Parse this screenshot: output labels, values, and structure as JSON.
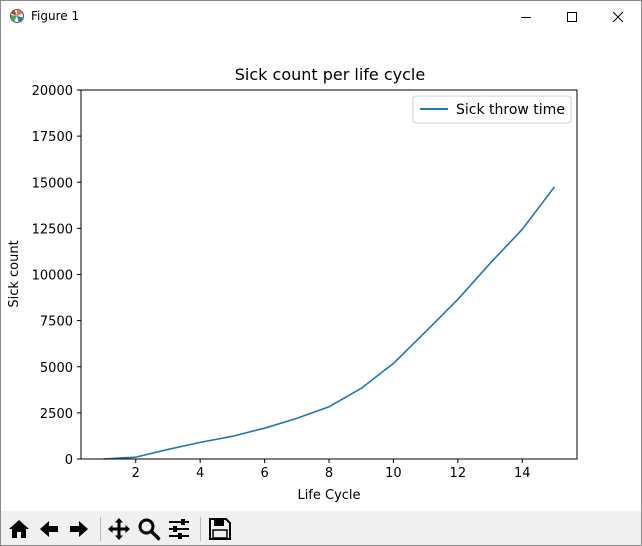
{
  "window": {
    "title": "Figure 1",
    "icons": {
      "app": "matplotlib-icon",
      "minimize": "minimize-icon",
      "maximize": "maximize-icon",
      "close": "close-icon"
    }
  },
  "toolbar": {
    "buttons": [
      "home-icon",
      "back-arrow-icon",
      "forward-arrow-icon",
      "pan-icon",
      "zoom-icon",
      "configure-subplots-icon",
      "save-icon"
    ]
  },
  "chart_data": {
    "type": "line",
    "title": "Sick count per life cycle",
    "xlabel": "Life Cycle",
    "ylabel": "Sick count",
    "xlim": [
      0.3,
      15.7
    ],
    "ylim": [
      0,
      20000
    ],
    "x_ticks": [
      "2",
      "4",
      "6",
      "8",
      "10",
      "12",
      "14"
    ],
    "y_ticks": [
      "0",
      "2500",
      "5000",
      "7500",
      "10000",
      "12500",
      "15000",
      "17500",
      "20000"
    ],
    "grid": false,
    "legend_position": "top-right",
    "x": [
      1,
      2,
      3,
      4,
      5,
      6,
      7,
      8,
      9,
      10,
      11,
      12,
      13,
      14,
      15
    ],
    "series": [
      {
        "name": "Sick throw time",
        "color": "#1f77b4",
        "values": [
          0,
          100,
          520,
          900,
          1230,
          1670,
          2200,
          2830,
          3830,
          5180,
          6900,
          8650,
          10600,
          12450,
          14750
        ]
      }
    ]
  }
}
